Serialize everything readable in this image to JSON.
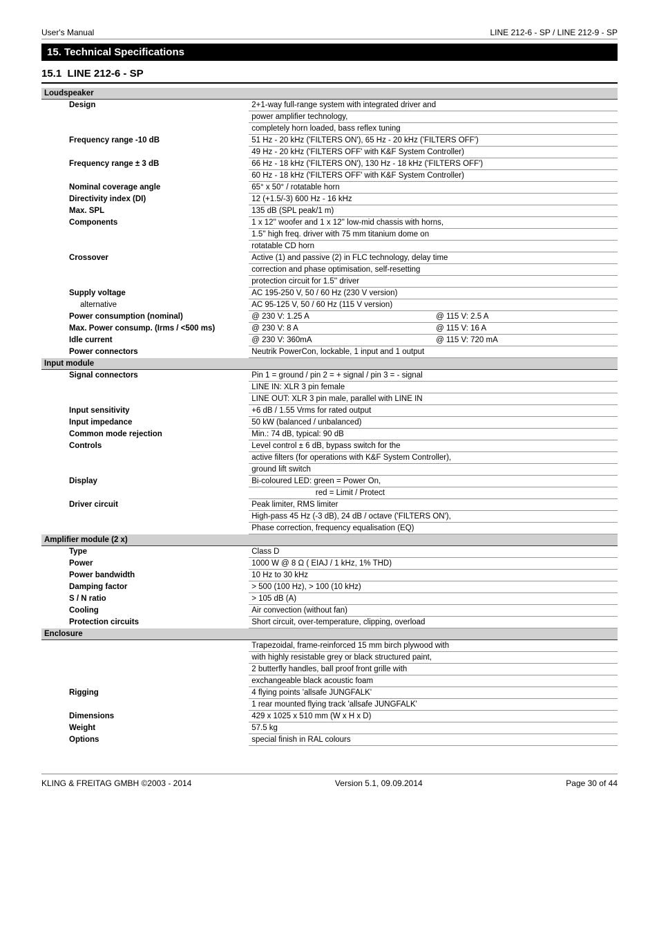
{
  "header": {
    "left": "User's Manual",
    "right": "LINE 212-6 - SP / LINE 212-9 - SP"
  },
  "section": {
    "number": "15.",
    "title": "Technical Specifications"
  },
  "subsection": {
    "number": "15.1",
    "title": "LINE 212-6 - SP"
  },
  "groups": [
    {
      "name": "Loudspeaker",
      "rows": [
        {
          "label": "Design",
          "bold": true,
          "values": [
            "2+1-way full-range system with integrated driver and",
            "power amplifier technology,",
            "completely horn loaded, bass reflex tuning"
          ]
        },
        {
          "label": "Frequency range -10 dB",
          "bold": true,
          "values": [
            "51 Hz - 20 kHz ('FILTERS ON'), 65 Hz - 20 kHz ('FILTERS OFF')",
            "49 Hz - 20 kHz ('FILTERS OFF' with K&F System Controller)"
          ]
        },
        {
          "label": "Frequency range ± 3 dB",
          "bold": true,
          "values": [
            "66 Hz - 18 kHz ('FILTERS ON'), 130 Hz - 18 kHz ('FILTERS OFF')",
            "60 Hz - 18 kHz ('FILTERS OFF' with K&F System Controller)"
          ]
        },
        {
          "label": "Nominal coverage angle",
          "bold": true,
          "values": [
            "65° x 50° / rotatable horn"
          ]
        },
        {
          "label": "Directivity index  (DI)",
          "bold": true,
          "values": [
            "12 (+1.5/-3) 600 Hz - 16 kHz"
          ]
        },
        {
          "label": "Max. SPL",
          "bold": true,
          "values": [
            "135 dB (SPL peak/1 m)"
          ]
        },
        {
          "label": "Components",
          "bold": true,
          "values": [
            "1 x 12'' woofer and 1 x 12'' low-mid chassis with horns,",
            "1.5'' high freq. driver with 75 mm titanium dome on",
            "rotatable CD horn"
          ]
        },
        {
          "label": "Crossover",
          "bold": true,
          "values": [
            "Active (1) and passive (2) in FLC technology, delay time",
            "correction and phase optimisation, self-resetting",
            "protection circuit for 1.5'' driver"
          ]
        },
        {
          "label": "Supply voltage",
          "bold": true,
          "values": [
            "AC 195-250 V, 50 / 60 Hz (230 V version)"
          ]
        },
        {
          "label": "alternative",
          "sub": true,
          "values": [
            "AC 95-125 V, 50 / 60 Hz (115 V version)"
          ]
        },
        {
          "label": "Power consumption (nominal)",
          "bold": true,
          "split": [
            "@ 230 V: 1.25 A",
            "@ 115 V: 2.5 A"
          ]
        },
        {
          "label": "Max. Power consump. (Irms / <500 ms)",
          "bold": true,
          "split": [
            "@ 230 V: 8 A",
            "@ 115 V: 16 A"
          ]
        },
        {
          "label": "Idle current",
          "bold": true,
          "split": [
            "@ 230 V: 360mA",
            "@ 115 V: 720 mA"
          ]
        },
        {
          "label": "Power connectors",
          "bold": true,
          "values": [
            "Neutrik PowerCon, lockable, 1 input and 1 output"
          ]
        }
      ]
    },
    {
      "name": "Input module",
      "rows": [
        {
          "label": "Signal connectors",
          "bold": true,
          "values": [
            "Pin 1 = ground / pin 2 = + signal / pin 3 = - signal",
            "LINE IN: XLR 3 pin female",
            "LINE OUT: XLR 3 pin male, parallel with LINE IN"
          ]
        },
        {
          "label": "Input sensitivity",
          "bold": true,
          "values": [
            "+6 dB / 1.55 Vrms for rated output"
          ]
        },
        {
          "label": "Input impedance",
          "bold": true,
          "values": [
            "50 kW (balanced / unbalanced)"
          ]
        },
        {
          "label": "Common mode rejection",
          "bold": true,
          "values": [
            "Min.: 74 dB, typical: 90 dB"
          ]
        },
        {
          "label": "Controls",
          "bold": true,
          "values": [
            "Level control ± 6 dB, bypass switch for the",
            "active filters (for operations with K&F System Controller),",
            "ground lift switch"
          ]
        },
        {
          "label": "Display",
          "bold": true,
          "values": [
            "Bi-coloured LED:   green = Power On,",
            "                             red = Limit / Protect"
          ]
        },
        {
          "label": "Driver circuit",
          "bold": true,
          "values": [
            "Peak limiter, RMS limiter",
            "High-pass 45 Hz (-3 dB), 24 dB / octave ('FILTERS ON'),",
            "Phase correction, frequency equalisation (EQ)"
          ]
        }
      ]
    },
    {
      "name": "Amplifier module (2 x)",
      "rows": [
        {
          "label": "Type",
          "bold": true,
          "values": [
            "Class D"
          ]
        },
        {
          "label": "Power",
          "bold": true,
          "values": [
            "1000 W @ 8 Ω ( EIAJ / 1 kHz, 1% THD)"
          ]
        },
        {
          "label": "Power bandwidth",
          "bold": true,
          "values": [
            "10 Hz to 30 kHz"
          ]
        },
        {
          "label": "Damping factor",
          "bold": true,
          "values": [
            "> 500 (100 Hz), > 100 (10 kHz)"
          ]
        },
        {
          "label": "S / N ratio",
          "bold": true,
          "values": [
            "> 105 dB (A)"
          ]
        },
        {
          "label": "Cooling",
          "bold": true,
          "values": [
            "Air convection (without fan)"
          ]
        },
        {
          "label": "Protection circuits",
          "bold": true,
          "values": [
            "Short circuit, over-temperature, clipping, overload"
          ]
        }
      ]
    },
    {
      "name": "Enclosure",
      "rows": [
        {
          "label": "",
          "values": [
            "Trapezoidal, frame-reinforced 15 mm birch plywood with",
            "with highly resistable grey or black structured paint,",
            "2 butterfly handles, ball proof front grille with",
            "exchangeable black acoustic foam"
          ]
        },
        {
          "label": "Rigging",
          "bold": true,
          "values": [
            "4 flying points 'allsafe JUNGFALK'",
            "1 rear mounted flying track 'allsafe JUNGFALK'"
          ]
        },
        {
          "label": "Dimensions",
          "bold": true,
          "values": [
            "429 x 1025 x 510 mm (W x H x D)"
          ]
        },
        {
          "label": "Weight",
          "bold": true,
          "values": [
            "57.5 kg"
          ]
        },
        {
          "label": "Options",
          "bold": true,
          "values": [
            "special finish in RAL colours"
          ]
        }
      ]
    }
  ],
  "footer": {
    "left": "KLING & FREITAG GMBH ©2003 - 2014",
    "center": "Version 5.1, 09.09.2014",
    "right": "Page 30 of 44"
  }
}
